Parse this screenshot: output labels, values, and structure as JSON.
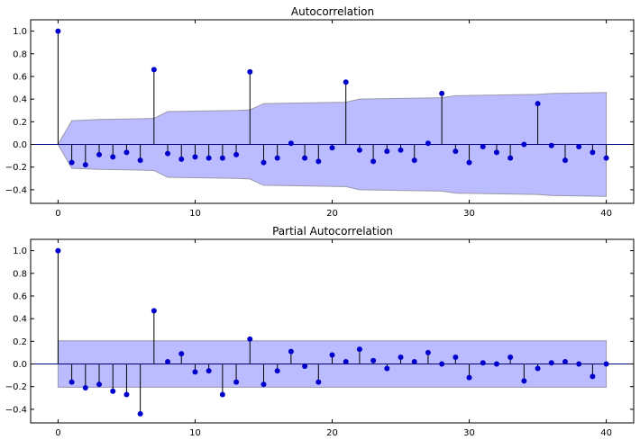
{
  "colors": {
    "marker": "#0000cc",
    "stem": "#000000",
    "zero_line": "#000080",
    "band_fill": "#bbbbff",
    "band_edge": "#9999aa"
  },
  "chart_data": [
    {
      "type": "stem",
      "title": "Autocorrelation",
      "xlim": [
        -2,
        42
      ],
      "ylim": [
        -0.52,
        1.1
      ],
      "xticks": [
        0,
        10,
        20,
        30,
        40
      ],
      "xtick_labels": [
        "0",
        "10",
        "20",
        "30",
        "40"
      ],
      "yticks": [
        -0.4,
        -0.2,
        0.0,
        0.2,
        0.4,
        0.6,
        0.8,
        1.0
      ],
      "ytick_labels": [
        "−0.4",
        "−0.2",
        "0.0",
        "0.2",
        "0.4",
        "0.6",
        "0.8",
        "1.0"
      ],
      "lags": [
        0,
        1,
        2,
        3,
        4,
        5,
        6,
        7,
        8,
        9,
        10,
        11,
        12,
        13,
        14,
        15,
        16,
        17,
        18,
        19,
        20,
        21,
        22,
        23,
        24,
        25,
        26,
        27,
        28,
        29,
        30,
        31,
        32,
        33,
        34,
        35,
        36,
        37,
        38,
        39,
        40
      ],
      "values": [
        1.0,
        -0.16,
        -0.18,
        -0.09,
        -0.11,
        -0.07,
        -0.14,
        0.66,
        -0.08,
        -0.13,
        -0.11,
        -0.12,
        -0.12,
        -0.09,
        0.64,
        -0.16,
        -0.12,
        0.01,
        -0.12,
        -0.15,
        -0.03,
        0.55,
        -0.05,
        -0.15,
        -0.06,
        -0.05,
        -0.14,
        0.01,
        0.45,
        -0.06,
        -0.16,
        -0.02,
        -0.07,
        -0.12,
        0.0,
        0.36,
        -0.01,
        -0.14,
        -0.02,
        -0.07,
        -0.12
      ],
      "confint_upper": [
        0.0,
        0.21,
        0.215,
        0.22,
        0.222,
        0.224,
        0.226,
        0.23,
        0.29,
        0.292,
        0.294,
        0.296,
        0.298,
        0.3,
        0.305,
        0.36,
        0.362,
        0.364,
        0.366,
        0.368,
        0.37,
        0.372,
        0.4,
        0.402,
        0.404,
        0.406,
        0.408,
        0.41,
        0.412,
        0.43,
        0.432,
        0.434,
        0.436,
        0.438,
        0.44,
        0.442,
        0.45,
        0.452,
        0.454,
        0.456,
        0.458
      ]
    },
    {
      "type": "stem",
      "title": "Partial Autocorrelation",
      "xlim": [
        -2,
        42
      ],
      "ylim": [
        -0.52,
        1.1
      ],
      "xticks": [
        0,
        10,
        20,
        30,
        40
      ],
      "xtick_labels": [
        "0",
        "10",
        "20",
        "30",
        "40"
      ],
      "yticks": [
        -0.4,
        -0.2,
        0.0,
        0.2,
        0.4,
        0.6,
        0.8,
        1.0
      ],
      "ytick_labels": [
        "−0.4",
        "−0.2",
        "0.0",
        "0.2",
        "0.4",
        "0.6",
        "0.8",
        "1.0"
      ],
      "lags": [
        0,
        1,
        2,
        3,
        4,
        5,
        6,
        7,
        8,
        9,
        10,
        11,
        12,
        13,
        14,
        15,
        16,
        17,
        18,
        19,
        20,
        21,
        22,
        23,
        24,
        25,
        26,
        27,
        28,
        29,
        30,
        31,
        32,
        33,
        34,
        35,
        36,
        37,
        38,
        39,
        40
      ],
      "values": [
        1.0,
        -0.16,
        -0.21,
        -0.18,
        -0.24,
        -0.27,
        -0.44,
        0.47,
        0.02,
        0.09,
        -0.07,
        -0.06,
        -0.27,
        -0.16,
        0.22,
        -0.18,
        -0.06,
        0.11,
        -0.02,
        -0.16,
        0.08,
        0.02,
        0.13,
        0.03,
        -0.04,
        0.06,
        0.02,
        0.1,
        0.0,
        0.06,
        -0.12,
        0.01,
        0.0,
        0.06,
        -0.15,
        -0.04,
        0.01,
        0.02,
        0.0,
        -0.11,
        0.0
      ],
      "confint_upper_constant": 0.205
    }
  ]
}
